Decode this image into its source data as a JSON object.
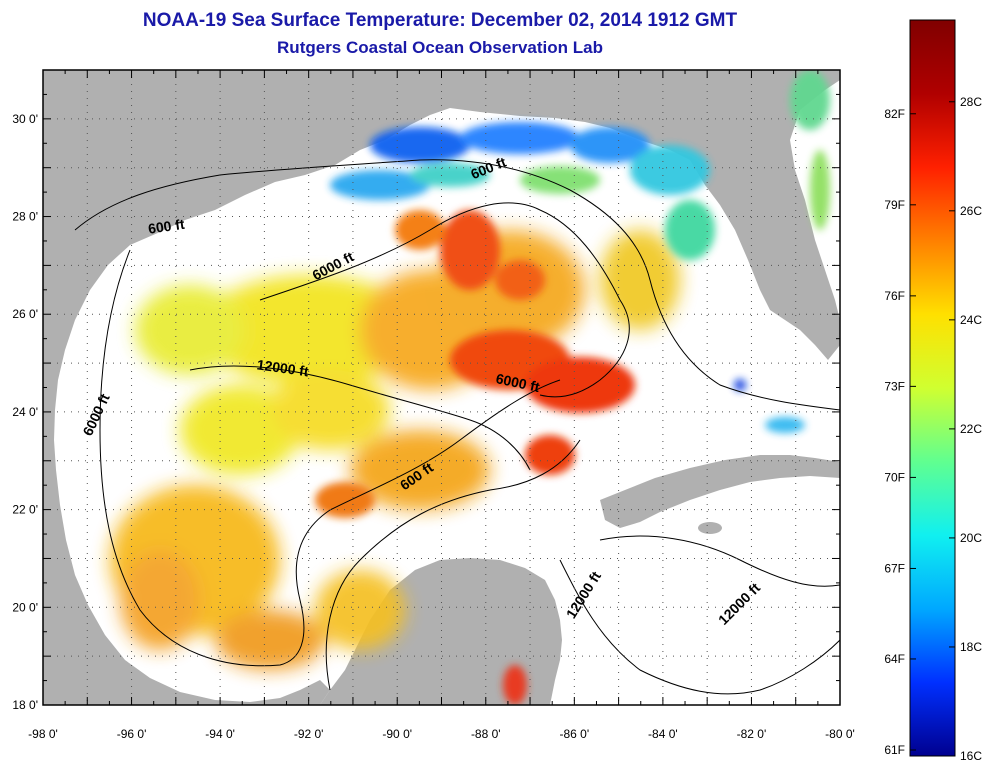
{
  "title": {
    "line1": "NOAA-19 Sea Surface Temperature:  December 02, 2014 1912 GMT",
    "line2": "Rutgers Coastal Ocean Observation Lab"
  },
  "map": {
    "lon_range": [
      -98,
      -80
    ],
    "lat_range": [
      18,
      31
    ],
    "x_ticks": [
      {
        "lon": -98,
        "label": "-98 0'"
      },
      {
        "lon": -96,
        "label": "-96 0'"
      },
      {
        "lon": -94,
        "label": "-94 0'"
      },
      {
        "lon": -92,
        "label": "-92 0'"
      },
      {
        "lon": -90,
        "label": "-90 0'"
      },
      {
        "lon": -88,
        "label": "-88 0'"
      },
      {
        "lon": -86,
        "label": "-86 0'"
      },
      {
        "lon": -84,
        "label": "-84 0'"
      },
      {
        "lon": -82,
        "label": "-82 0'"
      },
      {
        "lon": -80,
        "label": "-80 0'"
      }
    ],
    "y_ticks": [
      {
        "lat": 30,
        "label": "30 0'"
      },
      {
        "lat": 28,
        "label": "28 0'"
      },
      {
        "lat": 26,
        "label": "26 0'"
      },
      {
        "lat": 24,
        "label": "24 0'"
      },
      {
        "lat": 22,
        "label": "22 0'"
      },
      {
        "lat": 20,
        "label": "20 0'"
      },
      {
        "lat": 18,
        "label": "18 0'"
      }
    ],
    "land_color": "#b0b0b0",
    "ocean_color": "#ffffff",
    "contour_labels": [
      {
        "text": "600 ft",
        "lon": -87.9,
        "lat": 28.9,
        "rotate": -22
      },
      {
        "text": "600 ft",
        "lon": -95.2,
        "lat": 27.7,
        "rotate": -8
      },
      {
        "text": "6000 ft",
        "lon": -91.4,
        "lat": 26.9,
        "rotate": -28
      },
      {
        "text": "12000 ft",
        "lon": -92.6,
        "lat": 24.8,
        "rotate": 8
      },
      {
        "text": "6000 ft",
        "lon": -96.7,
        "lat": 23.9,
        "rotate": -65
      },
      {
        "text": "6000 ft",
        "lon": -87.3,
        "lat": 24.5,
        "rotate": 12
      },
      {
        "text": "600 ft",
        "lon": -89.5,
        "lat": 22.6,
        "rotate": -35
      },
      {
        "text": "12000 ft",
        "lon": -85.7,
        "lat": 20.2,
        "rotate": -58
      },
      {
        "text": "12000 ft",
        "lon": -82.2,
        "lat": 20.0,
        "rotate": -45
      }
    ]
  },
  "colorbar": {
    "min_c": 16,
    "max_c": 29.5,
    "celsius_ticks": [
      {
        "value": 28,
        "label": "28C"
      },
      {
        "value": 26,
        "label": "26C"
      },
      {
        "value": 24,
        "label": "24C"
      },
      {
        "value": 22,
        "label": "22C"
      },
      {
        "value": 20,
        "label": "20C"
      },
      {
        "value": 18,
        "label": "18C"
      },
      {
        "value": 16,
        "label": "16C"
      }
    ],
    "fahrenheit_ticks": [
      {
        "value": 27.78,
        "label": "82F"
      },
      {
        "value": 26.11,
        "label": "79F"
      },
      {
        "value": 24.44,
        "label": "76F"
      },
      {
        "value": 22.78,
        "label": "73F"
      },
      {
        "value": 21.11,
        "label": "70F"
      },
      {
        "value": 19.44,
        "label": "67F"
      },
      {
        "value": 17.78,
        "label": "64F"
      },
      {
        "value": 16.11,
        "label": "61F"
      }
    ],
    "stops": [
      "#00008f",
      "#0030ff",
      "#00a8ff",
      "#10f0f0",
      "#60ff90",
      "#d0ff30",
      "#ffe000",
      "#ff8000",
      "#ff2000",
      "#b00000",
      "#800000"
    ]
  }
}
